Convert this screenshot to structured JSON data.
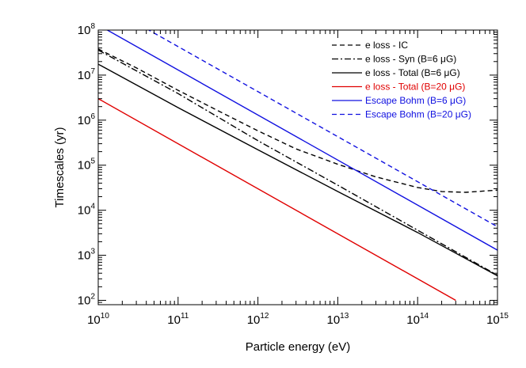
{
  "chart_data": {
    "type": "line",
    "title": "",
    "xlabel": "Particle energy (eV)",
    "ylabel": "Timescales (yr)",
    "x_scale": "log",
    "y_scale": "log",
    "xlim": [
      10000000000.0,
      1000000000000000.0
    ],
    "ylim": [
      80,
      100000000.0
    ],
    "x_ticks": [
      {
        "base": "10",
        "exp": "10",
        "value": 10000000000.0
      },
      {
        "base": "10",
        "exp": "11",
        "value": 100000000000.0
      },
      {
        "base": "10",
        "exp": "12",
        "value": 1000000000000.0
      },
      {
        "base": "10",
        "exp": "13",
        "value": 10000000000000.0
      },
      {
        "base": "10",
        "exp": "14",
        "value": 100000000000000.0
      },
      {
        "base": "10",
        "exp": "15",
        "value": 1000000000000000.0
      }
    ],
    "y_ticks": [
      {
        "base": "10",
        "exp": "2",
        "value": 100.0
      },
      {
        "base": "10",
        "exp": "3",
        "value": 1000.0
      },
      {
        "base": "10",
        "exp": "4",
        "value": 10000.0
      },
      {
        "base": "10",
        "exp": "5",
        "value": 100000.0
      },
      {
        "base": "10",
        "exp": "6",
        "value": 1000000.0
      },
      {
        "base": "10",
        "exp": "7",
        "value": 10000000.0
      },
      {
        "base": "10",
        "exp": "8",
        "value": 100000000.0
      }
    ],
    "grid": false,
    "legend_position": "top-right",
    "series": [
      {
        "name": "e loss - IC",
        "color": "#000000",
        "dash": "dashed",
        "x": [
          10000000000.0,
          30000000000.0,
          100000000000.0,
          300000000000.0,
          1000000000000.0,
          3000000000000.0,
          10000000000000.0,
          30000000000000.0,
          100000000000000.0,
          200000000000000.0,
          400000000000000.0,
          1000000000000000.0
        ],
        "y": [
          38000000.0,
          14500000.0,
          4600000.0,
          1700000.0,
          580000.0,
          230000.0,
          105000.0,
          55000.0,
          32000.0,
          26000.0,
          25000.0,
          28000.0
        ]
      },
      {
        "name": "e loss - Syn (B=6 μG)",
        "color": "#000000",
        "dash": "dash-dot",
        "x": [
          10000000000.0,
          100000000000.0,
          1000000000000.0,
          10000000000000.0,
          100000000000000.0,
          1000000000000000.0
        ],
        "y": [
          36000000.0,
          3900000.0,
          350000.0,
          36000.0,
          3600.0,
          360.0
        ]
      },
      {
        "name": "e loss - Total (B=6 μG)",
        "color": "#000000",
        "dash": "solid",
        "x": [
          10000000000.0,
          100000000000.0,
          1000000000000.0,
          10000000000000.0,
          100000000000000.0,
          1000000000000000.0
        ],
        "y": [
          17500000.0,
          1900000.0,
          220000.0,
          26000.0,
          3200.0,
          350.0
        ]
      },
      {
        "name": "e loss - Total (B=20 μG)",
        "color": "#e00000",
        "dash": "solid",
        "x": [
          10000000000.0,
          300000000000000.0
        ],
        "y": [
          3000000.0,
          100
        ]
      },
      {
        "name": "Escape Bohm (B=6 μG)",
        "color": "#1010e0",
        "dash": "solid",
        "x": [
          10000000000.0,
          1000000000000000.0
        ],
        "y": [
          130000000.0,
          1300.0
        ]
      },
      {
        "name": "Escape Bohm (B=20 μG)",
        "color": "#1010e0",
        "dash": "dashed",
        "x": [
          10000000000.0,
          1000000000000000.0
        ],
        "y": [
          430000000.0,
          4300.0
        ]
      }
    ]
  }
}
